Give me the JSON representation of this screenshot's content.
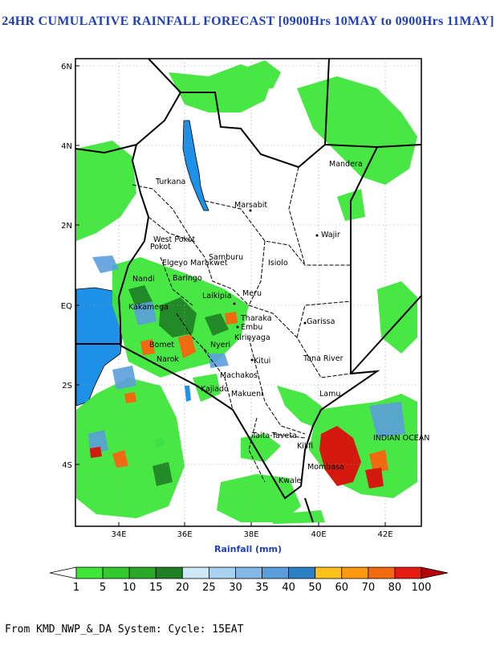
{
  "title": "24HR CUMULATIVE RAINFALL FORECAST [0900Hrs 10MAY to 0900Hrs 11MAY]",
  "map": {
    "lat_ticks": [
      "6N",
      "4N",
      "2N",
      "EQ",
      "2S",
      "4S"
    ],
    "lon_ticks": [
      "34E",
      "36E",
      "38E",
      "40E",
      "42E"
    ],
    "places": [
      "Mandera",
      "Turkana",
      "Marsabit",
      "Wajir",
      "West Pokot",
      "Elgeyo Marakwet",
      "Baringo",
      "Samburu",
      "Isiolo",
      "Laikipia",
      "Meru",
      "Tharaka",
      "Embu",
      "Kirinyaga",
      "Garissa",
      "Kitui",
      "Tana River",
      "Machakos",
      "Kajiado",
      "Makueni",
      "Lamu",
      "Taita-Taveta",
      "Kilifi",
      "Mombasa",
      "Kwale",
      "Nyeri",
      "Bomet",
      "Narok",
      "INDIAN OCEAN",
      "Kakamega",
      "Nandi"
    ],
    "xlabel": "Rainfall (mm)"
  },
  "colorbar": {
    "labels": [
      "1",
      "5",
      "10",
      "15",
      "20",
      "25",
      "30",
      "35",
      "40",
      "50",
      "60",
      "70",
      "80",
      "100"
    ],
    "colors": [
      "#ffffff",
      "#3ee63a",
      "#34c92f",
      "#2aa82a",
      "#1e7f25",
      "#cfe8f7",
      "#a9d2f0",
      "#84b9e6",
      "#5a9fdc",
      "#2d7fc4",
      "#ffc21a",
      "#ff9a10",
      "#f26a10",
      "#e51a12",
      "#b3000b"
    ]
  },
  "footer": "From KMD_NWP_&_DA System: Cycle: 15EAT"
}
